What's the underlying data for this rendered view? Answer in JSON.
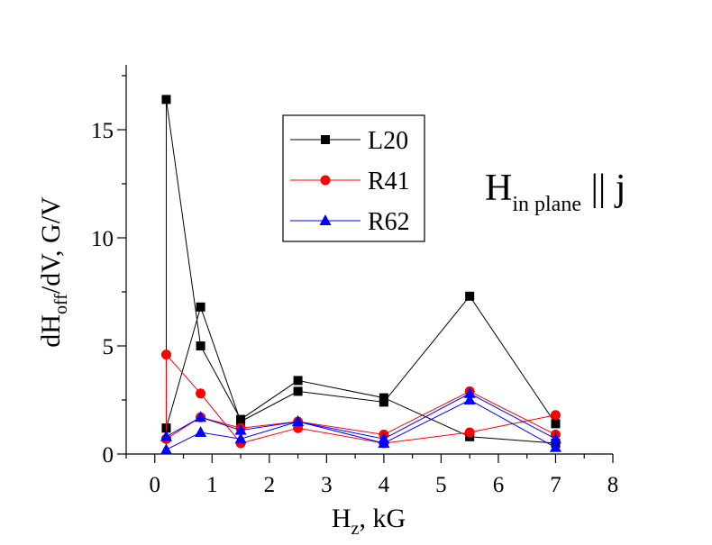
{
  "chart_data": {
    "type": "line",
    "title": "",
    "xlabel": {
      "main": "H",
      "sub": "z",
      "rest": ", kG"
    },
    "ylabel": {
      "pre": "dH",
      "sub": "off",
      "rest": "/dV, G/V"
    },
    "xlim": [
      -0.5,
      8
    ],
    "ylim": [
      0,
      18
    ],
    "x_ticks": [
      0,
      1,
      2,
      3,
      4,
      5,
      6,
      7,
      8
    ],
    "x_tick_labels": [
      "0",
      "1",
      "2",
      "3",
      "4",
      "5",
      "6",
      "7",
      "8"
    ],
    "y_ticks": [
      0,
      5,
      10,
      15
    ],
    "y_tick_labels": [
      "0",
      "5",
      "10",
      "15"
    ],
    "annotation": {
      "main": "H",
      "sub": "in plane",
      "rest": " || j"
    },
    "legend_position": "top-center",
    "series": [
      {
        "name": "L20",
        "color": "#000000",
        "marker": "square",
        "lines": [
          {
            "x": [
              0.2,
              0.2,
              0.8,
              1.5,
              2.5,
              4.0,
              5.5,
              7.0
            ],
            "y": [
              1.2,
              16.4,
              5.0,
              1.6,
              3.4,
              2.6,
              0.8,
              0.5
            ]
          },
          {
            "x": [
              0.2,
              0.8,
              1.5,
              2.5,
              4.0,
              5.5,
              7.0
            ],
            "y": [
              1.2,
              6.8,
              1.5,
              2.9,
              2.4,
              7.3,
              1.4
            ]
          }
        ]
      },
      {
        "name": "R41",
        "color": "#ff0000",
        "marker": "circle",
        "lines": [
          {
            "x": [
              0.2,
              0.2,
              0.8,
              1.5,
              2.5,
              4.0,
              5.5,
              7.0
            ],
            "y": [
              0.7,
              4.6,
              2.8,
              0.5,
              1.2,
              0.5,
              1.0,
              1.8
            ]
          },
          {
            "x": [
              0.2,
              0.8,
              1.5,
              2.5,
              4.0,
              5.5,
              7.0
            ],
            "y": [
              0.7,
              1.7,
              1.2,
              1.5,
              0.9,
              2.9,
              0.9
            ]
          }
        ]
      },
      {
        "name": "R62",
        "color": "#0000ff",
        "marker": "triangle",
        "lines": [
          {
            "x": [
              0.2,
              0.8,
              1.5,
              2.5,
              4.0,
              5.5,
              7.0
            ],
            "y": [
              0.8,
              1.7,
              1.1,
              1.5,
              0.7,
              2.8,
              0.7
            ]
          },
          {
            "x": [
              0.2,
              0.8,
              1.5,
              2.5,
              4.0,
              5.5,
              7.0
            ],
            "y": [
              0.2,
              1.0,
              0.7,
              1.5,
              0.5,
              2.5,
              0.3
            ]
          }
        ]
      }
    ]
  }
}
